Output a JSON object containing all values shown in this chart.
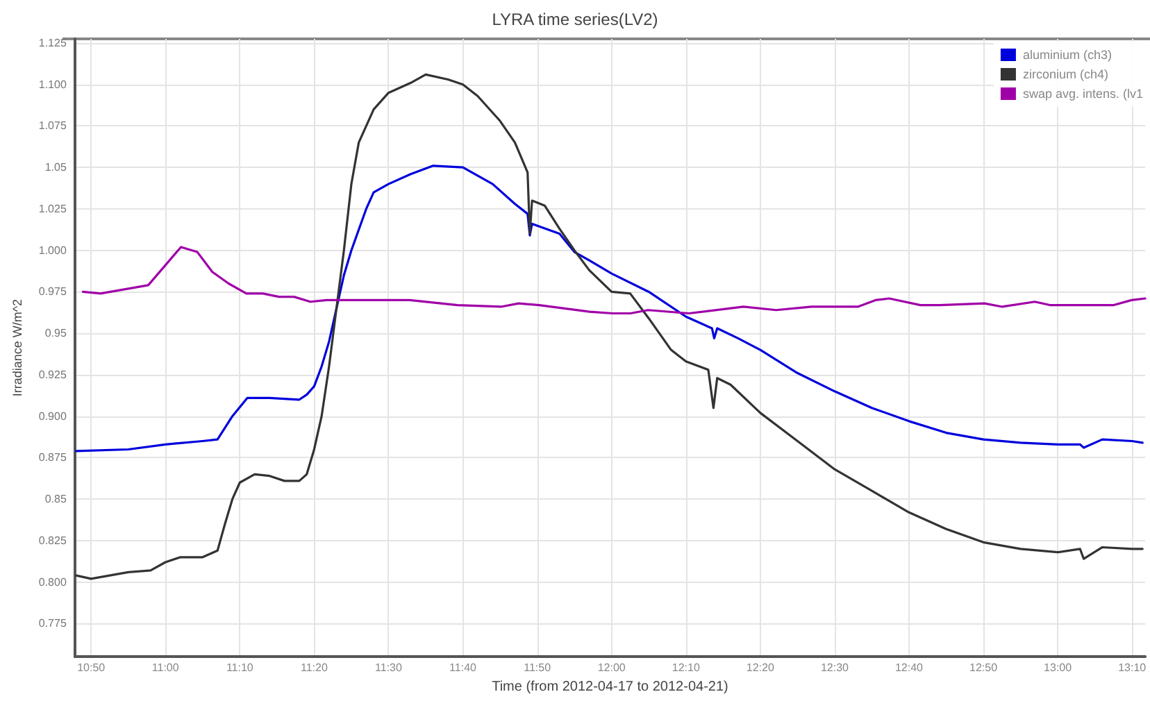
{
  "chart_data": {
    "type": "line",
    "title": "LYRA time series(LV2)",
    "xlabel": "Time (from 2012-04-17 to 2012-04-21)",
    "ylabel": "Irradiance W/m^2",
    "xlim": [
      10.797,
      13.196
    ],
    "xticks": [
      {
        "value": 10.833333,
        "label": "10:50"
      },
      {
        "value": 11,
        "label": "11:00"
      },
      {
        "value": 11.166667,
        "label": "11:10"
      },
      {
        "value": 11.333333,
        "label": "11:20"
      },
      {
        "value": 11.5,
        "label": "11:30"
      },
      {
        "value": 11.666667,
        "label": "11:40"
      },
      {
        "value": 11.833333,
        "label": "11:50"
      },
      {
        "value": 12,
        "label": "12:00"
      },
      {
        "value": 12.166667,
        "label": "12:10"
      },
      {
        "value": 12.333333,
        "label": "12:20"
      },
      {
        "value": 12.5,
        "label": "12:30"
      },
      {
        "value": 12.666667,
        "label": "12:40"
      },
      {
        "value": 12.833333,
        "label": "12:50"
      },
      {
        "value": 13,
        "label": "13:00"
      },
      {
        "value": 13.166667,
        "label": "13:10"
      }
    ],
    "ylim": [
      0.755,
      1.1275
    ],
    "yticks": [
      0.775,
      {
        "value": 0.8,
        "label": "0.800"
      },
      0.825,
      0.85,
      0.875,
      {
        "value": 0.9,
        "label": "0.900"
      },
      0.925,
      0.95,
      0.975,
      {
        "value": 1,
        "label": "1.000"
      },
      1.025,
      1.05,
      1.075,
      {
        "value": 1.1,
        "label": "1.100"
      },
      1.125
    ],
    "grid": true,
    "legend": "top right",
    "marker": "none",
    "line_style": "solid",
    "series": [
      {
        "name": "aluminium (ch3)",
        "color": "#0000dd",
        "x": [
          10.8,
          10.9167,
          11.0,
          11.0833,
          11.1167,
          11.15,
          11.1833,
          11.2333,
          11.3,
          11.3167,
          11.3333,
          11.35,
          11.3667,
          11.3833,
          11.4,
          11.4167,
          11.45,
          11.4667,
          11.5,
          11.55,
          11.6,
          11.6667,
          11.7333,
          11.7833,
          11.8117,
          11.8167,
          11.8217,
          11.8833,
          11.9167,
          11.95,
          12.0,
          12.0833,
          12.1667,
          12.225,
          12.23,
          12.2367,
          12.2833,
          12.3333,
          12.4167,
          12.5,
          12.5833,
          12.6667,
          12.75,
          12.8333,
          12.9167,
          13.0,
          13.05,
          13.0583,
          13.1,
          13.1667,
          13.19
        ],
        "values": [
          0.879,
          0.88,
          0.883,
          0.885,
          0.886,
          0.9,
          0.911,
          0.911,
          0.91,
          0.913,
          0.918,
          0.93,
          0.945,
          0.965,
          0.985,
          1.0,
          1.025,
          1.035,
          1.04,
          1.046,
          1.051,
          1.05,
          1.04,
          1.028,
          1.022,
          1.009,
          1.016,
          1.01,
          0.999,
          0.994,
          0.986,
          0.975,
          0.96,
          0.953,
          0.947,
          0.953,
          0.947,
          0.94,
          0.926,
          0.915,
          0.905,
          0.897,
          0.89,
          0.886,
          0.884,
          0.883,
          0.883,
          0.881,
          0.886,
          0.885,
          0.884
        ]
      },
      {
        "name": "zirconium (ch4)",
        "color": "#333333",
        "x": [
          10.8,
          10.8333,
          10.9167,
          10.9667,
          11.0,
          11.0333,
          11.0833,
          11.1167,
          11.1333,
          11.15,
          11.1667,
          11.2,
          11.2333,
          11.2667,
          11.3,
          11.3167,
          11.3333,
          11.35,
          11.3667,
          11.3833,
          11.4,
          11.4167,
          11.4333,
          11.4667,
          11.5,
          11.55,
          11.5833,
          11.6333,
          11.6667,
          11.7,
          11.75,
          11.7833,
          11.8117,
          11.8167,
          11.8217,
          11.85,
          11.8833,
          11.9167,
          11.95,
          12.0,
          12.0417,
          12.0833,
          12.1333,
          12.1667,
          12.2167,
          12.2283,
          12.2367,
          12.2667,
          12.3333,
          12.4167,
          12.5,
          12.5833,
          12.6667,
          12.75,
          12.8333,
          12.9167,
          13.0,
          13.05,
          13.0583,
          13.1,
          13.1667,
          13.19
        ],
        "values": [
          0.804,
          0.802,
          0.806,
          0.807,
          0.812,
          0.815,
          0.815,
          0.819,
          0.835,
          0.85,
          0.86,
          0.865,
          0.864,
          0.861,
          0.861,
          0.865,
          0.88,
          0.9,
          0.93,
          0.965,
          1.0,
          1.04,
          1.065,
          1.085,
          1.095,
          1.101,
          1.106,
          1.103,
          1.1,
          1.093,
          1.078,
          1.065,
          1.047,
          1.01,
          1.03,
          1.027,
          1.013,
          1.0,
          0.988,
          0.975,
          0.974,
          0.959,
          0.94,
          0.933,
          0.928,
          0.905,
          0.923,
          0.919,
          0.902,
          0.885,
          0.868,
          0.855,
          0.842,
          0.832,
          0.824,
          0.82,
          0.818,
          0.82,
          0.814,
          0.821,
          0.82,
          0.82
        ]
      },
      {
        "name": "swap avg. intens. (lv1",
        "color": "#a000a8",
        "x": [
          10.815,
          10.8547,
          10.9615,
          11.0348,
          11.0714,
          11.105,
          11.1416,
          11.1813,
          11.218,
          11.2545,
          11.2882,
          11.3248,
          11.3613,
          11.5018,
          11.5477,
          11.6545,
          11.7522,
          11.7918,
          11.8377,
          11.9505,
          12.0025,
          12.0422,
          12.0818,
          12.1733,
          12.2955,
          12.3687,
          12.4482,
          12.5518,
          12.5915,
          12.6222,
          12.6923,
          12.735,
          12.8358,
          12.8755,
          12.9487,
          12.9823,
          13.1258,
          13.1655,
          13.196
        ],
        "values": [
          0.975,
          0.974,
          0.979,
          1.002,
          0.999,
          0.987,
          0.98,
          0.974,
          0.974,
          0.972,
          0.972,
          0.969,
          0.97,
          0.97,
          0.97,
          0.967,
          0.966,
          0.968,
          0.967,
          0.963,
          0.962,
          0.962,
          0.964,
          0.962,
          0.966,
          0.964,
          0.966,
          0.966,
          0.97,
          0.971,
          0.967,
          0.967,
          0.968,
          0.966,
          0.969,
          0.967,
          0.967,
          0.97,
          0.971
        ]
      }
    ]
  }
}
